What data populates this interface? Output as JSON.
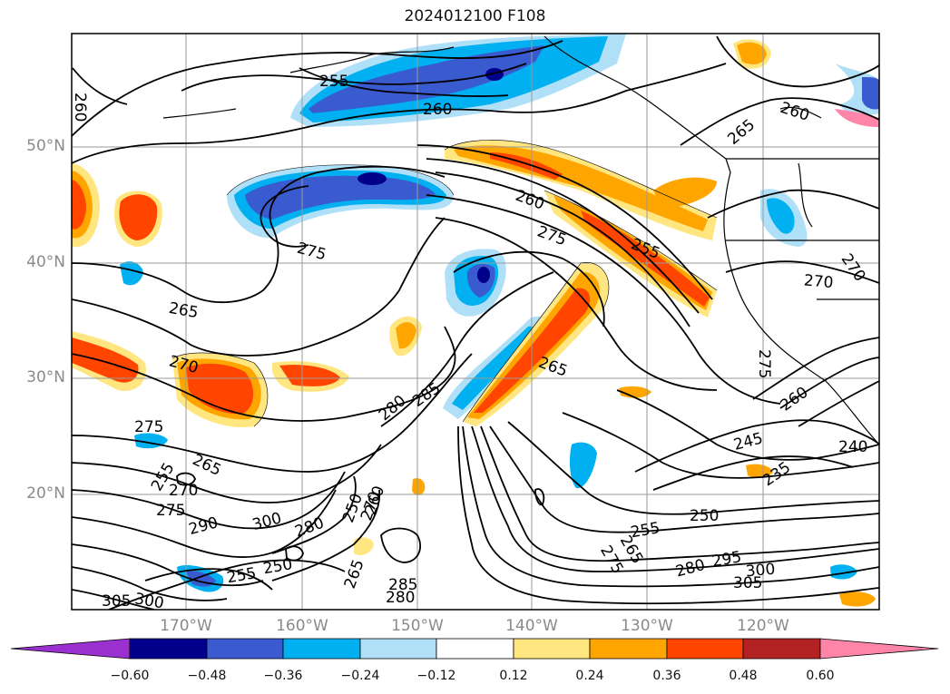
{
  "title": "2024012100 F108",
  "map": {
    "lat_ticks": [
      "50°N",
      "40°N",
      "30°N",
      "20°N"
    ],
    "lon_ticks": [
      "170°W",
      "160°W",
      "150°W",
      "140°W",
      "130°W",
      "120°W"
    ],
    "contour_labels": [
      "255",
      "260",
      "265",
      "260",
      "275",
      "260",
      "275",
      "255",
      "265",
      "270",
      "270",
      "265",
      "280",
      "285",
      "270",
      "275",
      "255",
      "265",
      "270",
      "275",
      "290",
      "300",
      "280",
      "255",
      "250",
      "305",
      "300",
      "280",
      "285",
      "295",
      "300",
      "305",
      "275",
      "280",
      "255",
      "250",
      "245",
      "235",
      "240",
      "260",
      "275",
      "250",
      "270",
      "265",
      "260",
      "265",
      "260"
    ]
  },
  "colorbar": {
    "tick_labels": [
      "−0.60",
      "−0.48",
      "−0.36",
      "−0.24",
      "−0.12",
      "0.12",
      "0.24",
      "0.36",
      "0.48",
      "0.60"
    ],
    "colors": [
      "#9b30d0",
      "#00008b",
      "#3a5bd0",
      "#00b0f0",
      "#b0e0f8",
      "#ffffff",
      "#ffe680",
      "#ffa500",
      "#ff4500",
      "#b22222",
      "#ff85a8"
    ]
  }
}
